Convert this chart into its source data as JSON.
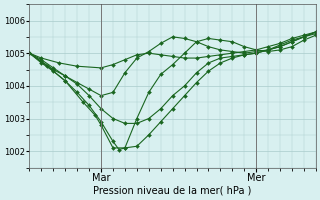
{
  "bg_color": "#d8f0f0",
  "grid_color": "#aacccc",
  "line_color": "#1a6620",
  "marker_color": "#1a6620",
  "xlabel": "Pression niveau de la mer( hPa )",
  "ylim": [
    1001.5,
    1006.5
  ],
  "yticks": [
    1002,
    1003,
    1004,
    1005,
    1006
  ],
  "xlim": [
    0,
    48
  ],
  "mar_x": 12,
  "mer_x": 38,
  "series": [
    {
      "x": [
        0,
        2,
        5,
        8,
        12,
        14,
        16,
        18,
        20,
        22,
        24,
        26,
        28,
        30,
        32,
        34,
        36,
        38,
        40,
        42,
        44,
        46,
        48
      ],
      "y": [
        1005.0,
        1004.85,
        1004.7,
        1004.6,
        1004.55,
        1004.65,
        1004.8,
        1004.95,
        1005.0,
        1004.95,
        1004.9,
        1004.85,
        1004.85,
        1004.9,
        1004.95,
        1005.0,
        1005.05,
        1005.1,
        1005.2,
        1005.3,
        1005.45,
        1005.55,
        1005.65
      ]
    },
    {
      "x": [
        0,
        2,
        4,
        6,
        8,
        10,
        12,
        14,
        16,
        18,
        20,
        22,
        24,
        26,
        28,
        30,
        32,
        34,
        36,
        38,
        40,
        42,
        44,
        46,
        48
      ],
      "y": [
        1005.0,
        1004.75,
        1004.5,
        1004.3,
        1004.1,
        1003.9,
        1003.7,
        1003.8,
        1004.4,
        1004.85,
        1005.05,
        1005.3,
        1005.5,
        1005.45,
        1005.35,
        1005.2,
        1005.1,
        1005.05,
        1005.0,
        1005.05,
        1005.1,
        1005.2,
        1005.35,
        1005.5,
        1005.65
      ]
    },
    {
      "x": [
        0,
        2,
        4,
        6,
        8,
        10,
        12,
        14,
        16,
        18,
        20,
        22,
        24,
        26,
        28,
        30,
        32,
        34,
        36,
        38,
        40,
        42,
        44,
        46,
        48
      ],
      "y": [
        1005.0,
        1004.8,
        1004.55,
        1004.3,
        1004.05,
        1003.7,
        1003.3,
        1003.0,
        1002.85,
        1002.85,
        1003.0,
        1003.3,
        1003.7,
        1004.0,
        1004.4,
        1004.7,
        1004.85,
        1004.9,
        1004.95,
        1005.0,
        1005.1,
        1005.2,
        1005.35,
        1005.5,
        1005.65
      ]
    },
    {
      "x": [
        0,
        3,
        6,
        9,
        11,
        12,
        14,
        16,
        18,
        20,
        22,
        24,
        26,
        28,
        30,
        32,
        34,
        36,
        38,
        40,
        42,
        44,
        46,
        48
      ],
      "y": [
        1005.0,
        1004.6,
        1004.15,
        1003.5,
        1003.1,
        1002.8,
        1002.1,
        1002.1,
        1003.0,
        1003.8,
        1004.35,
        1004.65,
        1005.0,
        1005.35,
        1005.45,
        1005.4,
        1005.35,
        1005.2,
        1005.1,
        1005.05,
        1005.1,
        1005.2,
        1005.4,
        1005.55
      ]
    },
    {
      "x": [
        0,
        2,
        4,
        6,
        8,
        10,
        12,
        14,
        15,
        16,
        18,
        20,
        22,
        24,
        26,
        28,
        30,
        32,
        34,
        36,
        38,
        40,
        42,
        44,
        48
      ],
      "y": [
        1005.0,
        1004.7,
        1004.45,
        1004.15,
        1003.8,
        1003.4,
        1002.9,
        1002.3,
        1002.05,
        1002.1,
        1002.15,
        1002.5,
        1002.9,
        1003.3,
        1003.7,
        1004.1,
        1004.45,
        1004.7,
        1004.85,
        1004.95,
        1005.0,
        1005.1,
        1005.25,
        1005.4,
        1005.6
      ]
    }
  ]
}
